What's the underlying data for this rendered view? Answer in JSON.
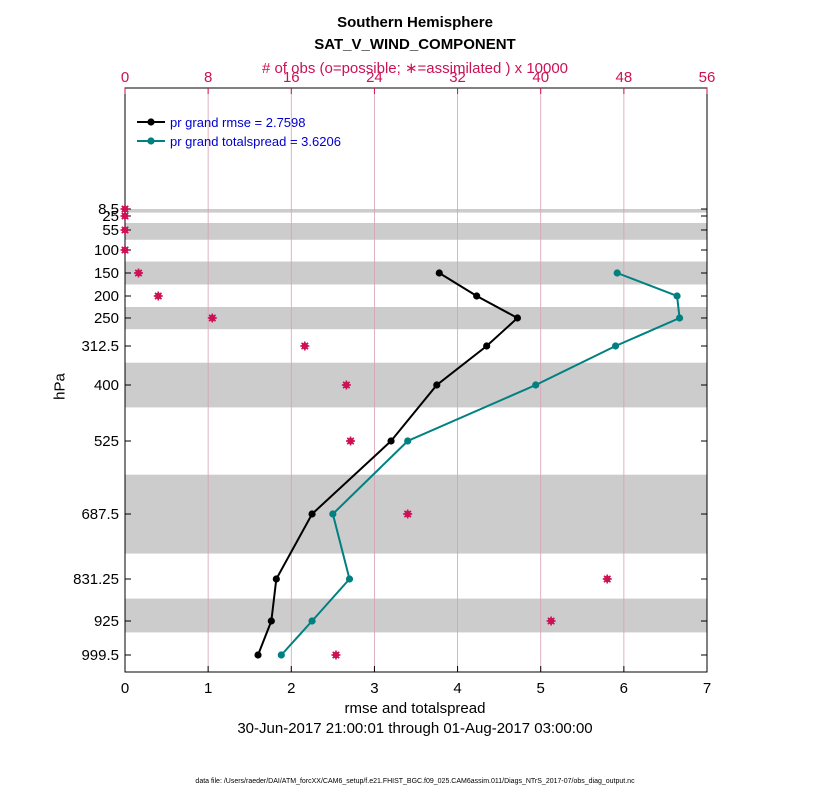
{
  "title_line1": "Southern Hemisphere",
  "title_line2": "SAT_V_WIND_COMPONENT",
  "top_axis_label": "# of obs (o=possible; ∗=assimilated ) x 10000",
  "xlabel": "rmse and totalspread",
  "ylabel": "hPa",
  "date_range": "30-Jun-2017 21:00:01 through 01-Aug-2017 03:00:00",
  "footer": "data file: /Users/raeder/DAI/ATM_forcXX/CAM6_setup/f.e21.FHIST_BGC.f09_025.CAM6assim.011/Diags_NTrS_2017-07/obs_diag_output.nc",
  "chart_data": {
    "type": "line",
    "bottom_axis": {
      "xlim": [
        0,
        7
      ],
      "ticks": [
        0,
        1,
        2,
        3,
        4,
        5,
        6,
        7
      ]
    },
    "top_axis": {
      "xlim": [
        0,
        56
      ],
      "ticks": [
        0,
        8,
        16,
        24,
        32,
        40,
        48,
        56
      ],
      "color": "#cc1155"
    },
    "yticks": [
      "8.5",
      "25",
      "55",
      "100",
      "150",
      "200",
      "250",
      "312.5",
      "400",
      "525",
      "687.5",
      "831.25",
      "925",
      "999.5"
    ],
    "levels": [
      8.5,
      25,
      55,
      100,
      150,
      200,
      250,
      312.5,
      400,
      525,
      687.5,
      831.25,
      925,
      999.5
    ],
    "bands": [
      {
        "from": 8.5,
        "to": 17
      },
      {
        "from": 40,
        "to": 77
      },
      {
        "from": 125,
        "to": 175
      },
      {
        "from": 225,
        "to": 275
      },
      {
        "from": 350,
        "to": 450
      },
      {
        "from": 600,
        "to": 775
      },
      {
        "from": 875,
        "to": 950
      }
    ],
    "legend_position": "top-left",
    "series": [
      {
        "name": "pr grand rmse = 2.7598",
        "color": "#000000",
        "points": [
          {
            "p": 150,
            "x": 3.78
          },
          {
            "p": 200,
            "x": 4.23
          },
          {
            "p": 250,
            "x": 4.72
          },
          {
            "p": 312.5,
            "x": 4.35
          },
          {
            "p": 400,
            "x": 3.75
          },
          {
            "p": 525,
            "x": 3.2
          },
          {
            "p": 687.5,
            "x": 2.25
          },
          {
            "p": 831.25,
            "x": 1.82
          },
          {
            "p": 925,
            "x": 1.76
          },
          {
            "p": 999.5,
            "x": 1.6
          }
        ]
      },
      {
        "name": "pr grand totalspread = 3.6206",
        "color": "#008080",
        "points": [
          {
            "p": 150,
            "x": 5.92
          },
          {
            "p": 200,
            "x": 6.64
          },
          {
            "p": 250,
            "x": 6.67
          },
          {
            "p": 312.5,
            "x": 5.9
          },
          {
            "p": 400,
            "x": 4.94
          },
          {
            "p": 525,
            "x": 3.4
          },
          {
            "p": 687.5,
            "x": 2.5
          },
          {
            "p": 831.25,
            "x": 2.7
          },
          {
            "p": 925,
            "x": 2.25
          },
          {
            "p": 999.5,
            "x": 1.88
          }
        ]
      }
    ],
    "obs_counts": {
      "color": "#cc1155",
      "points": [
        {
          "p": 8.5,
          "x": 0.0
        },
        {
          "p": 25,
          "x": 0.0
        },
        {
          "p": 55,
          "x": 0.0
        },
        {
          "p": 100,
          "x": 0.0
        },
        {
          "p": 150,
          "x": 1.3
        },
        {
          "p": 200,
          "x": 3.2
        },
        {
          "p": 250,
          "x": 8.4
        },
        {
          "p": 312.5,
          "x": 17.3
        },
        {
          "p": 400,
          "x": 21.3
        },
        {
          "p": 525,
          "x": 21.7
        },
        {
          "p": 687.5,
          "x": 27.2
        },
        {
          "p": 831.25,
          "x": 46.4
        },
        {
          "p": 925,
          "x": 41.0
        },
        {
          "p": 999.5,
          "x": 20.3
        }
      ]
    }
  }
}
